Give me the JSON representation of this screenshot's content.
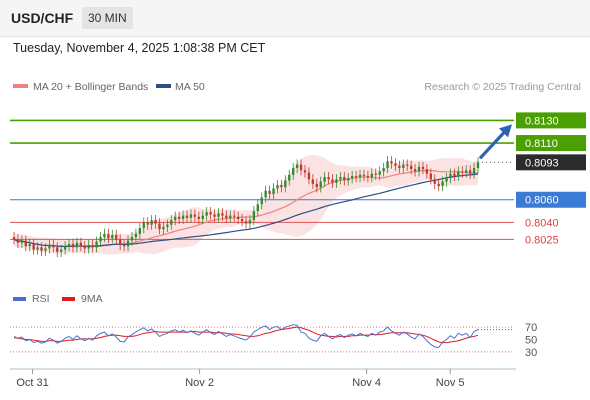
{
  "header": {
    "symbol": "USD/CHF",
    "timeframe": "30 MIN"
  },
  "datetime": "Tuesday, November 4, 2025 1:08:38 PM CET",
  "legend": {
    "items": [
      {
        "label": "MA 20 + Bollinger Bands",
        "color": "#f08080"
      },
      {
        "label": "MA 50",
        "color": "#2c4f8a"
      }
    ]
  },
  "copyright": "Research © 2025 Trading Central",
  "rsi_legend": {
    "items": [
      {
        "label": "RSI",
        "color": "#4a6fd0"
      },
      {
        "label": "9MA",
        "color": "#e41a1a"
      }
    ]
  },
  "chart_data": {
    "type": "candlestick",
    "price_ylim": [
      0.7998,
      0.8148
    ],
    "current_price": "0.8093",
    "levels": [
      {
        "label": "0.8130",
        "value": 0.813,
        "kind": "resistance"
      },
      {
        "label": "0.8110",
        "value": 0.811,
        "kind": "resistance"
      },
      {
        "label": "0.8060",
        "value": 0.806,
        "kind": "pivot"
      },
      {
        "label": "0.8040",
        "value": 0.804,
        "kind": "support"
      },
      {
        "label": "0.8025",
        "value": 0.8025,
        "kind": "support"
      }
    ],
    "x_ticks": [
      "Oct 31",
      "Nov 2",
      "Nov 4",
      "Nov 5"
    ],
    "colors": {
      "up": "#2e8b2e",
      "down": "#c0392b",
      "resistance": "#4aa000",
      "pivot": "#3a7bd5",
      "support": "#e05555",
      "ma50": "#2c4f8a",
      "ma20": "#f08080",
      "arrow": "#2c63b5"
    },
    "candles_close": [
      0.8025,
      0.8022,
      0.8024,
      0.8019,
      0.8021,
      0.8016,
      0.8018,
      0.8015,
      0.8017,
      0.802,
      0.8018,
      0.8014,
      0.8016,
      0.8019,
      0.8021,
      0.8018,
      0.8022,
      0.8019,
      0.8017,
      0.802,
      0.8018,
      0.8023,
      0.8027,
      0.803,
      0.8026,
      0.8029,
      0.8025,
      0.802,
      0.8019,
      0.8024,
      0.8027,
      0.803,
      0.8035,
      0.804,
      0.8038,
      0.8042,
      0.8039,
      0.8034,
      0.8036,
      0.8038,
      0.8042,
      0.8045,
      0.8043,
      0.8046,
      0.8044,
      0.8047,
      0.8045,
      0.8043,
      0.8046,
      0.8049,
      0.8047,
      0.8045,
      0.8048,
      0.8046,
      0.8044,
      0.8046,
      0.8045,
      0.8043,
      0.8041,
      0.8039,
      0.8042,
      0.805,
      0.8056,
      0.8062,
      0.8068,
      0.8065,
      0.807,
      0.8073,
      0.8071,
      0.8077,
      0.8082,
      0.8088,
      0.8091,
      0.8086,
      0.8084,
      0.8078,
      0.8074,
      0.8071,
      0.8076,
      0.808,
      0.8078,
      0.8075,
      0.8078,
      0.808,
      0.8077,
      0.8079,
      0.8081,
      0.808,
      0.8082,
      0.8081,
      0.808,
      0.8083,
      0.8082,
      0.8085,
      0.8088,
      0.8094,
      0.8092,
      0.809,
      0.8088,
      0.8091,
      0.809,
      0.8087,
      0.8085,
      0.8089,
      0.8087,
      0.8083,
      0.8078,
      0.8074,
      0.8072,
      0.8076,
      0.8079,
      0.8083,
      0.8081,
      0.8085,
      0.8084,
      0.8086,
      0.8083,
      0.8088,
      0.8093
    ]
  },
  "rsi_data": {
    "ylim": [
      20,
      80
    ],
    "ticks": [
      "70",
      "50",
      "30"
    ],
    "rsi": [
      55,
      52,
      54,
      48,
      50,
      45,
      47,
      44,
      46,
      52,
      49,
      44,
      47,
      52,
      55,
      50,
      56,
      51,
      48,
      52,
      49,
      56,
      60,
      62,
      56,
      59,
      54,
      47,
      46,
      54,
      58,
      62,
      66,
      69,
      64,
      67,
      62,
      55,
      58,
      60,
      64,
      66,
      62,
      65,
      61,
      64,
      60,
      57,
      62,
      66,
      61,
      58,
      63,
      59,
      55,
      58,
      56,
      53,
      51,
      49,
      54,
      62,
      66,
      70,
      72,
      66,
      70,
      71,
      66,
      70,
      72,
      74,
      73,
      62,
      60,
      52,
      49,
      47,
      56,
      60,
      55,
      51,
      56,
      58,
      53,
      57,
      59,
      56,
      60,
      57,
      55,
      60,
      57,
      62,
      64,
      70,
      64,
      60,
      57,
      62,
      59,
      54,
      51,
      59,
      55,
      48,
      42,
      38,
      37,
      46,
      50,
      56,
      52,
      60,
      57,
      60,
      53,
      63,
      66
    ],
    "ma9": [
      53,
      52,
      51,
      50,
      50,
      49,
      48,
      47,
      47,
      48,
      48,
      47,
      47,
      48,
      49,
      49,
      50,
      51,
      51,
      51,
      51,
      52,
      53,
      55,
      56,
      57,
      57,
      56,
      55,
      55,
      55,
      56,
      58,
      60,
      61,
      62,
      63,
      62,
      62,
      62,
      62,
      62,
      62,
      62,
      62,
      63,
      63,
      62,
      62,
      62,
      62,
      61,
      61,
      61,
      60,
      59,
      59,
      58,
      57,
      56,
      55,
      55,
      56,
      58,
      60,
      61,
      63,
      65,
      66,
      67,
      68,
      69,
      70,
      69,
      67,
      65,
      62,
      59,
      57,
      56,
      55,
      55,
      54,
      55,
      55,
      55,
      56,
      56,
      57,
      57,
      57,
      58,
      58,
      58,
      59,
      60,
      61,
      61,
      61,
      61,
      61,
      60,
      59,
      58,
      57,
      55,
      52,
      49,
      46,
      45,
      45,
      46,
      47,
      48,
      50,
      52,
      54,
      55,
      57
    ]
  }
}
